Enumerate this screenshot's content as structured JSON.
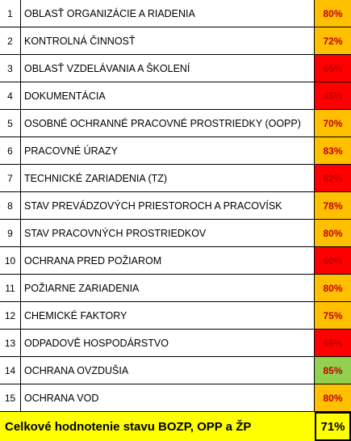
{
  "table": {
    "rows": [
      [
        "1",
        "OBLASŤ ORGANIZÁCIE A RIADENIA",
        "80%",
        "#FFC000"
      ],
      [
        "2",
        "KONTROLNÁ ČINNOSŤ",
        "72%",
        "#FFC000"
      ],
      [
        "3",
        "OBLASŤ VZDELÁVANIA A ŠKOLENÍ",
        "65%",
        "#FF0000"
      ],
      [
        "4",
        "DOKUMENTÁCIA",
        "45%",
        "#FF0000"
      ],
      [
        "5",
        "OSOBNÉ OCHRANNÉ PRACOVNÉ PROSTRIEDKY (OOPP)",
        "70%",
        "#FFC000"
      ],
      [
        "6",
        "PRACOVNÉ ÚRAZY",
        "83%",
        "#FFC000"
      ],
      [
        "7",
        "TECHNICKÉ ZARIADENIA (TZ)",
        "62%",
        "#FF0000"
      ],
      [
        "8",
        "STAV PREVÁDZOVÝCH PRIESTOROCH A PRACOVÍSK",
        "78%",
        "#FFC000"
      ],
      [
        "9",
        "STAV PRACOVNÝCH PROSTRIEDKOV",
        "80%",
        "#FFC000"
      ],
      [
        "10",
        "OCHRANA PRED POŽIAROM",
        "60%",
        "#FF0000"
      ],
      [
        "11",
        "POŽIARNE ZARIADENIA",
        "80%",
        "#FFC000"
      ],
      [
        "12",
        "CHEMICKÉ FAKTORY",
        "75%",
        "#FFC000"
      ],
      [
        "13",
        "ODPADOVĚ HOSPODÁRSTVO",
        "55%",
        "#FF0000"
      ],
      [
        "14",
        "OCHRANA OVZDUŠIA",
        "85%",
        "#92D050"
      ],
      [
        "15",
        "OCHRANA VOD",
        "80%",
        "#FFC000"
      ]
    ],
    "total": {
      "label": "Celkové hodnotenie stavu BOZP, OPP a ŽP",
      "value": "71%",
      "color": "#FFFF00"
    }
  }
}
